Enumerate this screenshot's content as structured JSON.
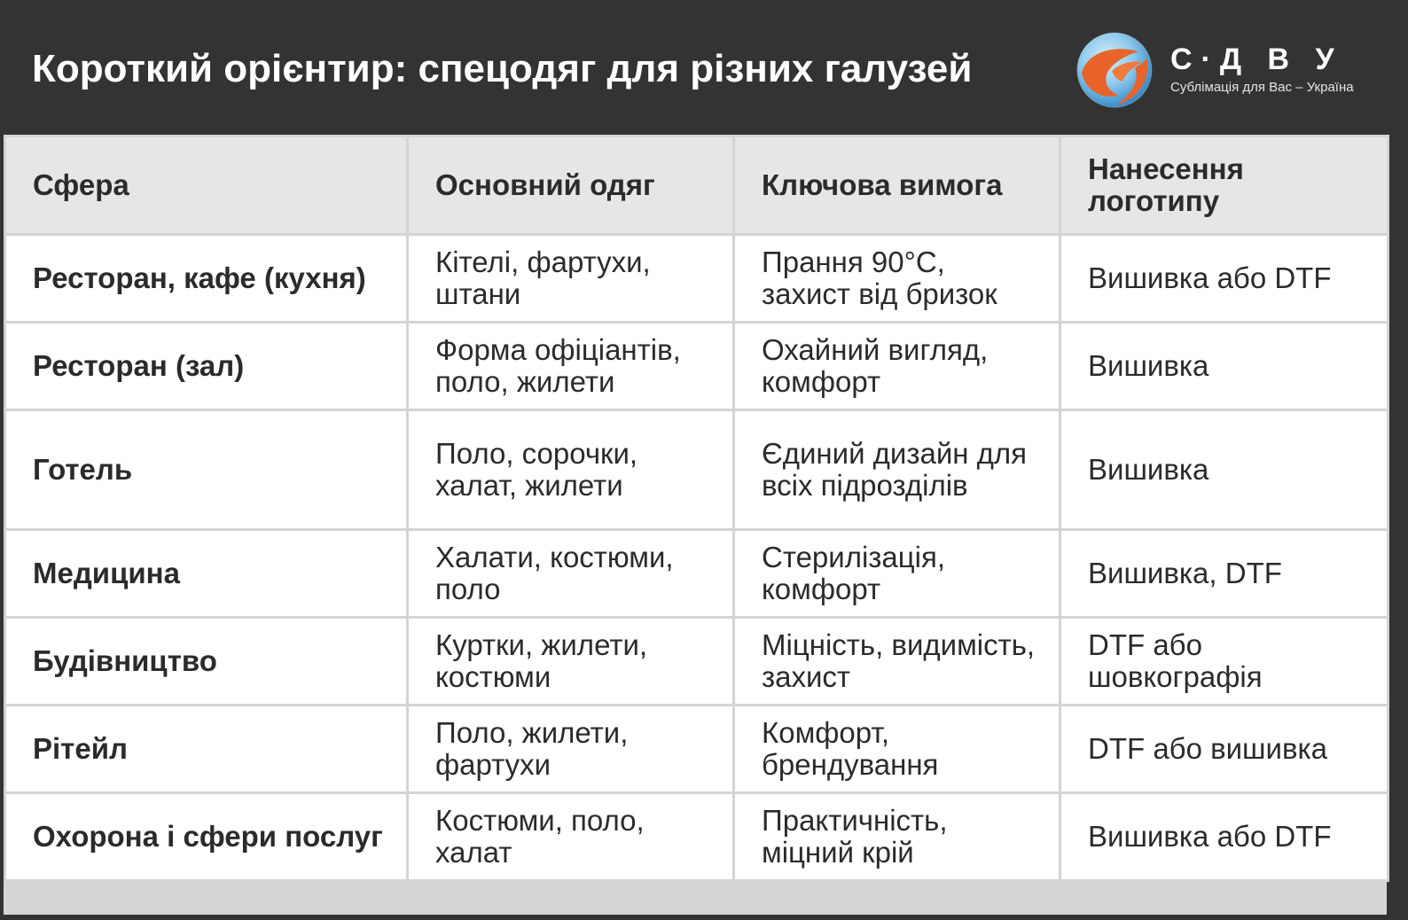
{
  "header": {
    "title": "Короткий орієнтир: спецодяг для різних галузей"
  },
  "logo": {
    "name": "С·Д В У",
    "tagline": "Сублімація для Вас – Україна",
    "colors": {
      "orange": "#e8642a",
      "blue": "#2a8fd0",
      "light_blue": "#9fd3f0"
    }
  },
  "table": {
    "headers": [
      "Сфера",
      "Основний одяг",
      "Ключова вимога",
      "Нанесення логотипу"
    ],
    "rows": [
      [
        "Ресторан, кафе (кухня)",
        "Кітелі, фартухи, штани",
        "Прання 90°C, захист від бризок",
        "Вишивка або DTF"
      ],
      [
        "Ресторан (зал)",
        "Форма офіціантів, поло, жилети",
        "Охайний вигляд, комфорт",
        "Вишивка"
      ],
      [
        "Готель",
        "Поло, сорочки, халат, жилети",
        "Єдиний дизайн для всіх підрозділів",
        "Вишивка"
      ],
      [
        "Медицина",
        "Халати, костюми, поло",
        "Стерилізація, комфорт",
        "Вишивка, DTF"
      ],
      [
        "Будівництво",
        "Куртки, жилети, костюми",
        "Міцність, видимість, захист",
        "DTF або шовкографія"
      ],
      [
        "Рітейл",
        "Поло, жилети, фартухи",
        "Комфорт, брендування",
        "DTF або вишивка"
      ],
      [
        "Охорона і сфери послуг",
        "Костюми, поло, халат",
        "Практичність, міцний крій",
        "Вишивка або DTF"
      ]
    ]
  }
}
